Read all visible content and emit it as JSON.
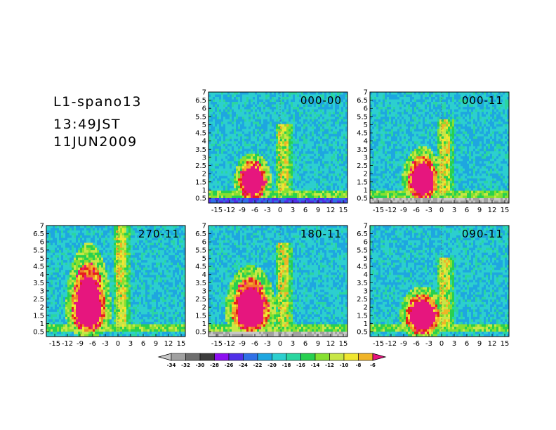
{
  "header": {
    "title": "L1-spano13",
    "time": "13:49JST",
    "date": "11JUN2009"
  },
  "colors": {
    "palette": [
      "#c8c8c8",
      "#a0a0a0",
      "#6e6e6e",
      "#3c3c3c",
      "#8c0ff0",
      "#5030e8",
      "#3070e6",
      "#1ea6e0",
      "#2ccfcf",
      "#2ad6a0",
      "#28d050",
      "#86e030",
      "#c8e646",
      "#f0e630",
      "#f0b428",
      "#f07e28",
      "#e61e1e",
      "#e6167e"
    ],
    "cap_low": "#c8c8c8",
    "cap_high": "#e6167e"
  },
  "chart_data": {
    "type": "heatmap",
    "colorbar": {
      "tick_labels": [
        "-34",
        "-32",
        "-30",
        "-28",
        "-26",
        "-24",
        "-22",
        "-20",
        "-18",
        "-16",
        "-14",
        "-12",
        "-10",
        "-8",
        "-6"
      ],
      "extend": "both"
    },
    "x_ticks": [
      "-15",
      "-12",
      "-9",
      "-6",
      "-3",
      "0",
      "3",
      "6",
      "9",
      "12",
      "15"
    ],
    "x_tick_values": [
      -15,
      -12,
      -9,
      -6,
      -3,
      0,
      3,
      6,
      9,
      12,
      15
    ],
    "xlim": [
      -17,
      16
    ],
    "y_ticks": [
      "0.5",
      "1",
      "1.5",
      "2",
      "2.5",
      "3",
      "3.5",
      "4",
      "4.5",
      "5",
      "5.5",
      "6",
      "6.5",
      "7"
    ],
    "y_tick_values": [
      0.5,
      1,
      1.5,
      2,
      2.5,
      3,
      3.5,
      4,
      4.5,
      5,
      5.5,
      6,
      6.5,
      7
    ],
    "ylim": [
      0.2,
      7
    ],
    "panels": [
      {
        "label": "000-00",
        "blob_center": [
          -6.5,
          1.5
        ],
        "blob_half_width": 3.3,
        "blob_top": 2.8,
        "bottom_band": "blue"
      },
      {
        "label": "000-11",
        "blob_center": [
          -4.5,
          1.5
        ],
        "blob_half_width": 3.6,
        "blob_top": 3.1,
        "bottom_band": "gray"
      },
      {
        "label": "270-11",
        "blob_center": [
          -7.0,
          1.6
        ],
        "blob_half_width": 4.0,
        "blob_top": 4.8,
        "bottom_band": "none"
      },
      {
        "label": "180-11",
        "blob_center": [
          -7.0,
          1.6
        ],
        "blob_half_width": 4.5,
        "blob_top": 3.8,
        "bottom_band": "gray"
      },
      {
        "label": "090-11",
        "blob_center": [
          -4.5,
          1.4
        ],
        "blob_half_width": 4.0,
        "blob_top": 2.8,
        "bottom_band": "none"
      }
    ]
  }
}
